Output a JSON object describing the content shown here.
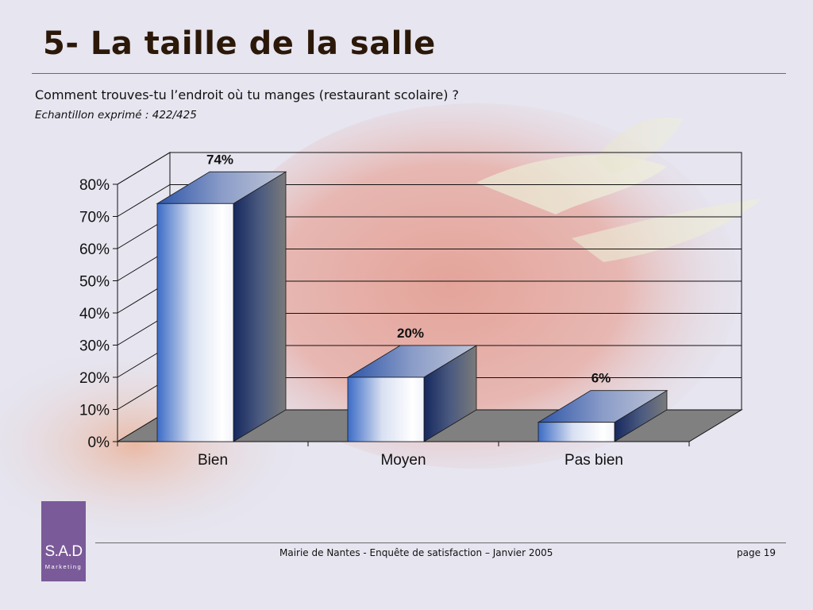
{
  "slide": {
    "title": "5- La taille de la salle",
    "question": "Comment trouves-tu l’endroit où tu manges (restaurant scolaire) ?",
    "sample": "Echantillon exprimé : 422/425",
    "footer": "Mairie de Nantes - Enquête de satisfaction – Janvier 2005",
    "page": "page 19"
  },
  "logo": {
    "mark": "S.A.D",
    "sub": "Marketing",
    "color": "#7a5a99"
  },
  "chart_data": {
    "type": "bar",
    "categories": [
      "Bien",
      "Moyen",
      "Pas bien"
    ],
    "values": [
      74,
      20,
      6
    ],
    "data_labels": [
      "74%",
      "20%",
      "6%"
    ],
    "y_ticks": [
      "0%",
      "10%",
      "20%",
      "30%",
      "40%",
      "50%",
      "60%",
      "70%",
      "80%"
    ],
    "ylim": [
      0,
      80
    ],
    "grid": true,
    "style": "3d",
    "colors": {
      "bar_front": "#4a7ad0",
      "bar_side": "#1a2f6a",
      "floor": "#808080"
    }
  }
}
